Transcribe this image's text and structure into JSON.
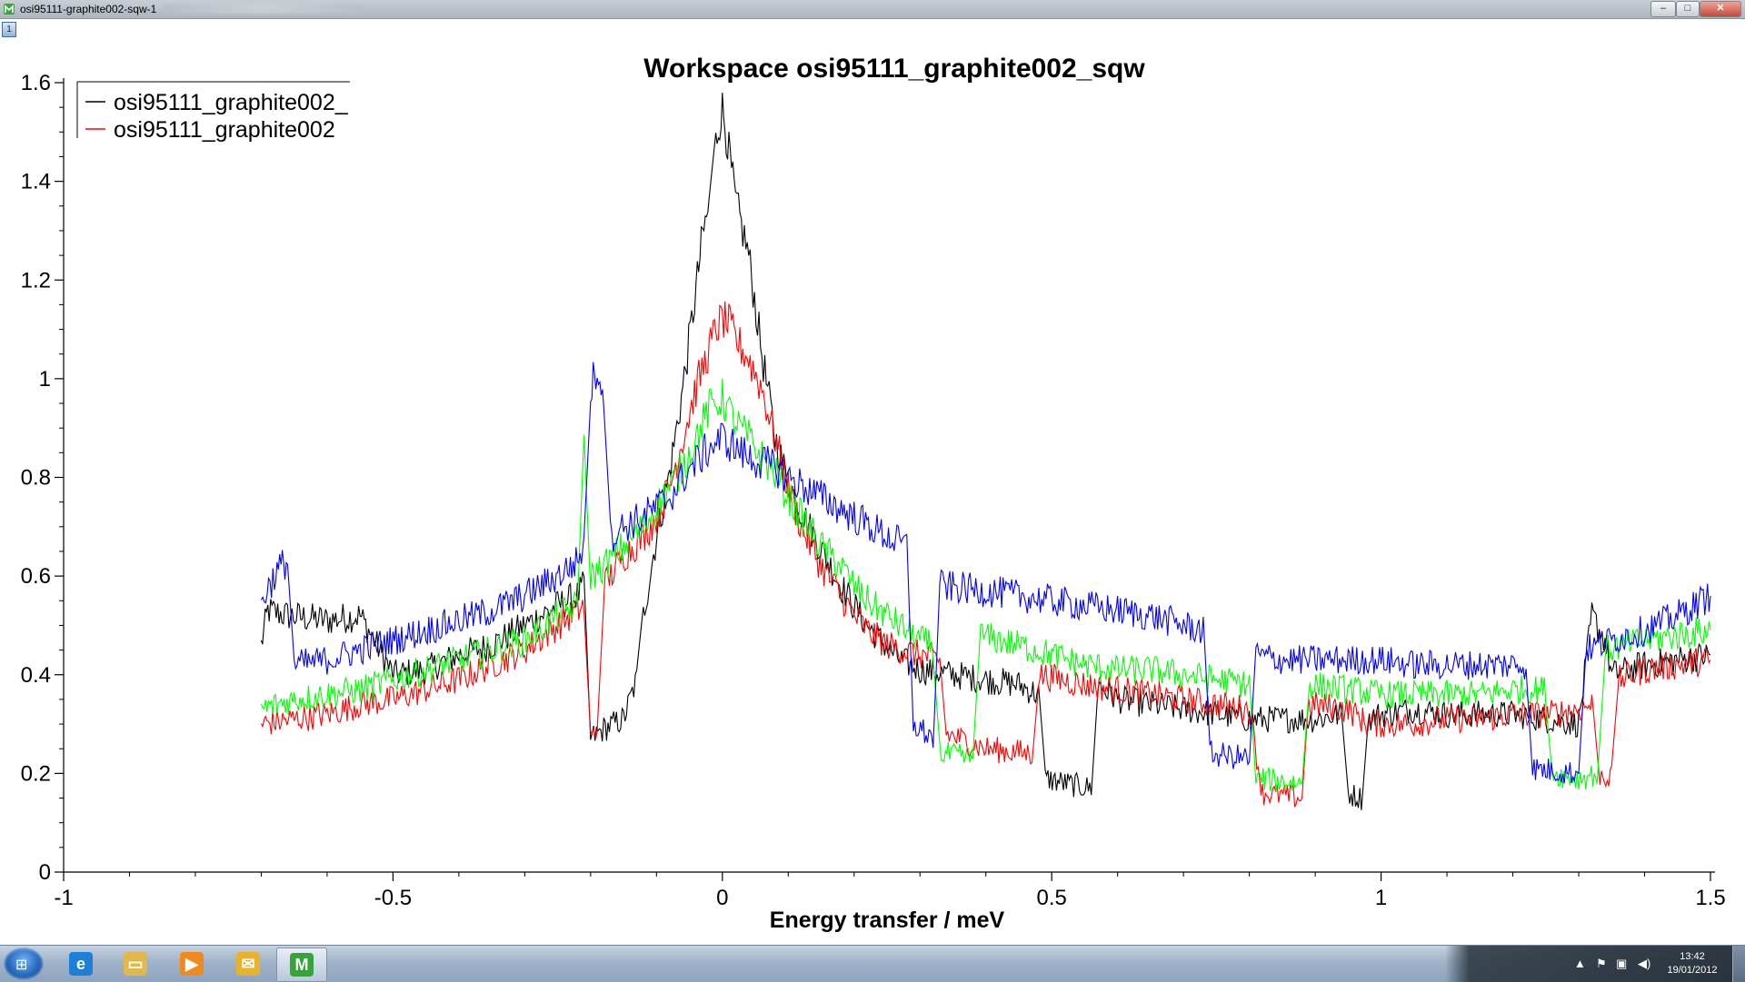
{
  "window": {
    "title": "osi95111-graphite002-sqw-1",
    "layer_badge": "1",
    "minimize_glyph": "–",
    "maximize_glyph": "□",
    "close_glyph": "✕"
  },
  "chart_data": {
    "type": "line",
    "title": "Workspace osi95111_graphite002_sqw",
    "xlabel": "Energy transfer / meV",
    "ylabel": "",
    "xlim": [
      -1,
      1.5
    ],
    "ylim": [
      0,
      1.6
    ],
    "xticks": [
      -1,
      -0.5,
      0,
      0.5,
      1,
      1.5
    ],
    "xtick_labels": [
      "-1",
      "-0.5",
      "0",
      "0.5",
      "1",
      "1.5"
    ],
    "yticks": [
      0,
      0.2,
      0.4,
      0.6,
      0.8,
      1,
      1.2,
      1.4,
      1.6
    ],
    "ytick_labels": [
      "0",
      "0.2",
      "0.4",
      "0.6",
      "0.8",
      "1",
      "1.2",
      "1.4",
      "1.6"
    ],
    "grid": false,
    "legend_position": "top-left",
    "legend": [
      "osi95111_graphite002_",
      "osi95111_graphite002"
    ],
    "series": [
      {
        "name": "osi95111_graphite002_",
        "color": "#000000",
        "x": [
          -0.7,
          -0.69,
          -0.66,
          -0.6,
          -0.55,
          -0.52,
          -0.5,
          -0.45,
          -0.4,
          -0.35,
          -0.3,
          -0.25,
          -0.22,
          -0.21,
          -0.2,
          -0.18,
          -0.15,
          -0.13,
          -0.12,
          -0.1,
          -0.08,
          -0.06,
          -0.04,
          -0.03,
          -0.02,
          -0.01,
          0,
          0.01,
          0.02,
          0.04,
          0.06,
          0.08,
          0.1,
          0.12,
          0.14,
          0.16,
          0.18,
          0.2,
          0.22,
          0.24,
          0.27,
          0.3,
          0.35,
          0.4,
          0.45,
          0.48,
          0.49,
          0.52,
          0.56,
          0.57,
          0.6,
          0.65,
          0.7,
          0.75,
          0.8,
          0.85,
          0.9,
          0.94,
          0.95,
          0.97,
          0.98,
          1.0,
          1.05,
          1.1,
          1.15,
          1.2,
          1.25,
          1.3,
          1.32,
          1.34,
          1.35,
          1.4,
          1.45,
          1.5
        ],
        "y": [
          0.46,
          0.53,
          0.52,
          0.51,
          0.52,
          0.45,
          0.4,
          0.41,
          0.44,
          0.46,
          0.5,
          0.54,
          0.56,
          0.58,
          0.27,
          0.29,
          0.31,
          0.39,
          0.52,
          0.68,
          0.81,
          0.98,
          1.18,
          1.29,
          1.35,
          1.48,
          1.55,
          1.46,
          1.36,
          1.25,
          1.05,
          0.88,
          0.79,
          0.73,
          0.68,
          0.63,
          0.58,
          0.54,
          0.5,
          0.47,
          0.43,
          0.41,
          0.4,
          0.39,
          0.38,
          0.36,
          0.19,
          0.18,
          0.17,
          0.38,
          0.35,
          0.34,
          0.33,
          0.32,
          0.31,
          0.31,
          0.31,
          0.32,
          0.16,
          0.15,
          0.31,
          0.32,
          0.33,
          0.32,
          0.32,
          0.32,
          0.31,
          0.3,
          0.52,
          0.47,
          0.4,
          0.42,
          0.43,
          0.44
        ]
      },
      {
        "name": "osi95111_graphite002",
        "color": "#ff0000",
        "x": [
          -0.7,
          -0.65,
          -0.6,
          -0.55,
          -0.5,
          -0.45,
          -0.4,
          -0.35,
          -0.3,
          -0.25,
          -0.22,
          -0.21,
          -0.2,
          -0.19,
          -0.18,
          -0.15,
          -0.12,
          -0.1,
          -0.08,
          -0.06,
          -0.04,
          -0.02,
          -0.01,
          0,
          0.01,
          0.02,
          0.04,
          0.06,
          0.08,
          0.1,
          0.12,
          0.15,
          0.18,
          0.2,
          0.22,
          0.25,
          0.3,
          0.33,
          0.34,
          0.4,
          0.47,
          0.48,
          0.55,
          0.6,
          0.65,
          0.7,
          0.75,
          0.8,
          0.82,
          0.88,
          0.89,
          0.95,
          0.97,
          0.98,
          1.05,
          1.1,
          1.15,
          1.2,
          1.25,
          1.3,
          1.32,
          1.33,
          1.35,
          1.36,
          1.4,
          1.45,
          1.5
        ],
        "y": [
          0.3,
          0.31,
          0.32,
          0.34,
          0.35,
          0.37,
          0.39,
          0.42,
          0.45,
          0.5,
          0.53,
          0.54,
          0.27,
          0.29,
          0.58,
          0.64,
          0.68,
          0.72,
          0.78,
          0.88,
          0.98,
          1.06,
          1.1,
          1.12,
          1.11,
          1.08,
          1.04,
          0.98,
          0.88,
          0.78,
          0.7,
          0.62,
          0.56,
          0.52,
          0.49,
          0.46,
          0.44,
          0.43,
          0.28,
          0.25,
          0.24,
          0.4,
          0.38,
          0.37,
          0.36,
          0.35,
          0.34,
          0.33,
          0.16,
          0.15,
          0.34,
          0.33,
          0.31,
          0.3,
          0.3,
          0.31,
          0.31,
          0.32,
          0.32,
          0.33,
          0.34,
          0.2,
          0.19,
          0.39,
          0.41,
          0.42,
          0.43
        ]
      },
      {
        "name": "",
        "color": "#00ff00",
        "x": [
          -0.7,
          -0.65,
          -0.6,
          -0.55,
          -0.5,
          -0.45,
          -0.4,
          -0.35,
          -0.3,
          -0.25,
          -0.22,
          -0.21,
          -0.2,
          -0.18,
          -0.15,
          -0.12,
          -0.1,
          -0.08,
          -0.06,
          -0.04,
          -0.02,
          0,
          0.02,
          0.04,
          0.06,
          0.08,
          0.1,
          0.12,
          0.15,
          0.18,
          0.2,
          0.22,
          0.25,
          0.28,
          0.3,
          0.32,
          0.33,
          0.38,
          0.39,
          0.45,
          0.5,
          0.55,
          0.6,
          0.65,
          0.7,
          0.75,
          0.8,
          0.81,
          0.88,
          0.89,
          0.95,
          1.0,
          1.05,
          1.1,
          1.15,
          1.2,
          1.25,
          1.26,
          1.3,
          1.33,
          1.34,
          1.4,
          1.45,
          1.5
        ],
        "y": [
          0.33,
          0.35,
          0.36,
          0.37,
          0.39,
          0.41,
          0.43,
          0.45,
          0.47,
          0.52,
          0.54,
          0.9,
          0.6,
          0.62,
          0.66,
          0.7,
          0.74,
          0.78,
          0.82,
          0.88,
          0.94,
          0.96,
          0.91,
          0.88,
          0.84,
          0.81,
          0.76,
          0.72,
          0.66,
          0.62,
          0.58,
          0.55,
          0.52,
          0.49,
          0.47,
          0.46,
          0.24,
          0.23,
          0.48,
          0.46,
          0.44,
          0.42,
          0.41,
          0.41,
          0.4,
          0.39,
          0.38,
          0.19,
          0.18,
          0.38,
          0.37,
          0.36,
          0.36,
          0.36,
          0.36,
          0.37,
          0.37,
          0.2,
          0.19,
          0.2,
          0.45,
          0.47,
          0.48,
          0.49
        ]
      },
      {
        "name": "",
        "color": "#0000ff",
        "x": [
          -0.7,
          -0.68,
          -0.67,
          -0.66,
          -0.65,
          -0.6,
          -0.55,
          -0.5,
          -0.45,
          -0.4,
          -0.35,
          -0.3,
          -0.25,
          -0.22,
          -0.21,
          -0.2,
          -0.19,
          -0.18,
          -0.17,
          -0.15,
          -0.12,
          -0.1,
          -0.08,
          -0.06,
          -0.04,
          -0.02,
          0,
          0.02,
          0.04,
          0.06,
          0.08,
          0.1,
          0.15,
          0.2,
          0.25,
          0.28,
          0.29,
          0.32,
          0.33,
          0.4,
          0.45,
          0.5,
          0.55,
          0.6,
          0.65,
          0.7,
          0.73,
          0.74,
          0.8,
          0.81,
          0.85,
          0.9,
          0.95,
          1.0,
          1.05,
          1.1,
          1.15,
          1.2,
          1.22,
          1.23,
          1.3,
          1.31,
          1.35,
          1.4,
          1.45,
          1.5
        ],
        "y": [
          0.55,
          0.6,
          0.62,
          0.63,
          0.42,
          0.43,
          0.45,
          0.47,
          0.49,
          0.51,
          0.53,
          0.56,
          0.6,
          0.63,
          0.66,
          0.98,
          1.02,
          0.98,
          0.68,
          0.7,
          0.72,
          0.74,
          0.76,
          0.8,
          0.83,
          0.86,
          0.88,
          0.86,
          0.84,
          0.83,
          0.82,
          0.8,
          0.76,
          0.72,
          0.68,
          0.66,
          0.3,
          0.27,
          0.58,
          0.57,
          0.56,
          0.55,
          0.54,
          0.53,
          0.52,
          0.5,
          0.49,
          0.24,
          0.23,
          0.44,
          0.43,
          0.43,
          0.43,
          0.43,
          0.42,
          0.42,
          0.42,
          0.42,
          0.42,
          0.21,
          0.2,
          0.45,
          0.47,
          0.49,
          0.52,
          0.56
        ]
      }
    ]
  },
  "taskbar": {
    "start_glyph": "⊞",
    "clock_time": "13:42",
    "clock_date": "19/01/2012",
    "items": [
      {
        "name": "ie-icon",
        "glyph": "e",
        "color": "#1e7fd6"
      },
      {
        "name": "explorer-folder-icon",
        "glyph": "▭",
        "color": "#e2b84a"
      },
      {
        "name": "media-player-icon",
        "glyph": "▶",
        "color": "#f08a1c"
      },
      {
        "name": "outlook-icon",
        "glyph": "✉",
        "color": "#e8b32a"
      },
      {
        "name": "mantidplot-icon",
        "glyph": "M",
        "color": "#35a33a"
      }
    ]
  }
}
